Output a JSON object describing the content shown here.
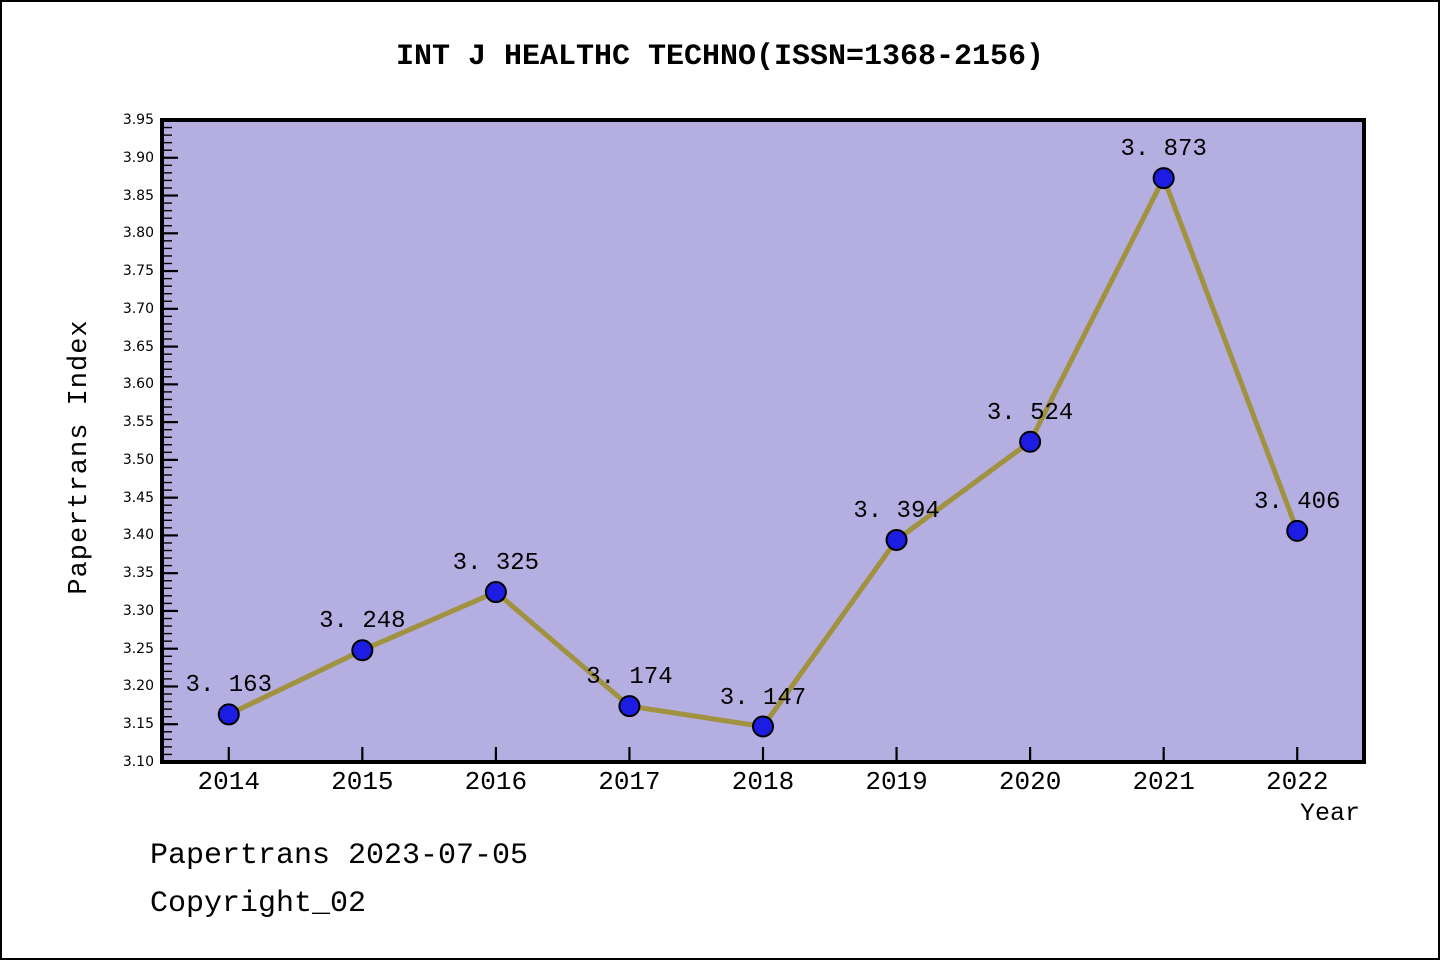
{
  "title": "INT J HEALTHC TECHNO(ISSN=1368-2156)",
  "chart_data": {
    "type": "line",
    "x": [
      2014,
      2015,
      2016,
      2017,
      2018,
      2019,
      2020,
      2021,
      2022
    ],
    "xtick_labels": [
      "2014",
      "2015",
      "2016",
      "2017",
      "2018",
      "2019",
      "2020",
      "2021",
      "2022"
    ],
    "series": [
      {
        "name": "Papertrans Index",
        "values": [
          3.163,
          3.248,
          3.325,
          3.174,
          3.147,
          3.394,
          3.524,
          3.873,
          3.406
        ]
      }
    ],
    "point_labels": [
      "3. 163",
      "3. 248",
      "3. 325",
      "3. 174",
      "3. 147",
      "3. 394",
      "3. 524",
      "3. 873",
      "3. 406"
    ],
    "title": "INT J HEALTHC TECHNO(ISSN=1368-2156)",
    "xlabel": "Year",
    "ylabel": "Papertrans Index",
    "xlim": [
      2013.5,
      2022.5
    ],
    "ylim": [
      3.1,
      3.95
    ],
    "ytick_labels": [
      "3.10",
      "3.15",
      "3.20",
      "3.25",
      "3.30",
      "3.35",
      "3.40",
      "3.45",
      "3.50",
      "3.55",
      "3.60",
      "3.65",
      "3.70",
      "3.75",
      "3.80",
      "3.85",
      "3.90",
      "3.95"
    ],
    "ytick_step": 0.05,
    "ytick_minor_step": 0.01,
    "grid": false,
    "legend": "none",
    "colors": {
      "plot_bg": "#b4aee1",
      "line": "#a0923e",
      "marker": "#1c1ce2",
      "marker_edge": "#000000",
      "spine": "#000000",
      "text": "#000000"
    }
  },
  "footer": {
    "line1": "Papertrans 2023-07-05",
    "line2": "Copyright_02"
  }
}
